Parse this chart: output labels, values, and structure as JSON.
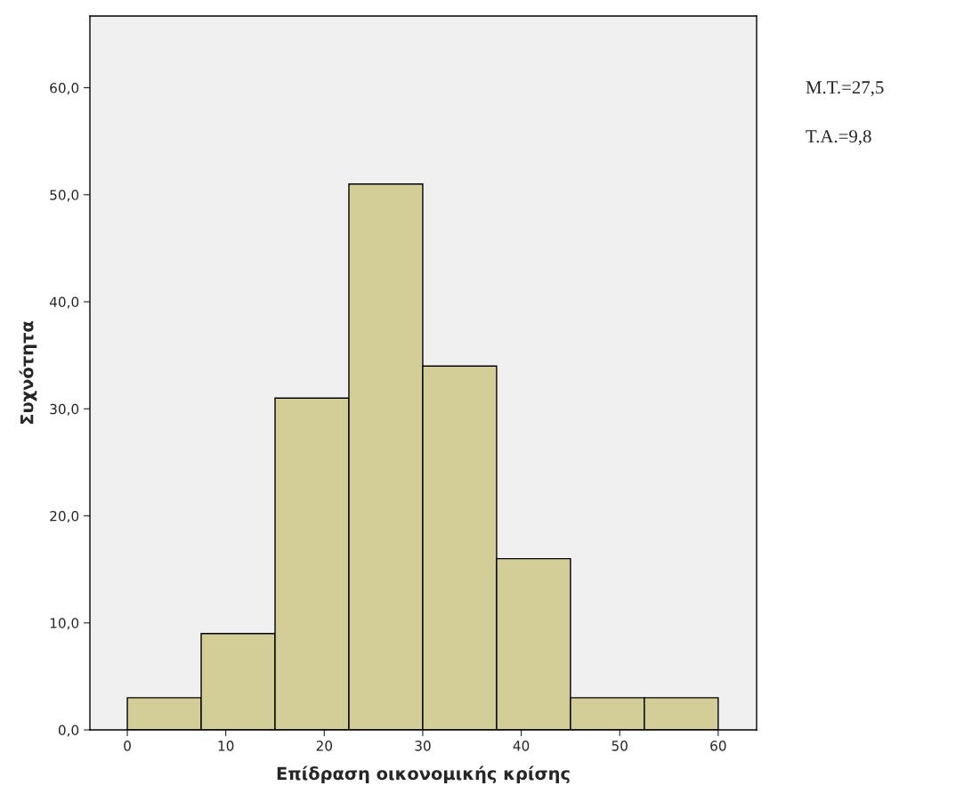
{
  "chart_data": {
    "type": "histogram",
    "xlabel": "Επίδραση οικονομικής κρίσης",
    "ylabel": "Συχνότητα",
    "bins": [
      0,
      7.5,
      15,
      22.5,
      30,
      37.5,
      45,
      52.5,
      60
    ],
    "values": [
      3,
      9,
      31,
      51,
      34,
      16,
      3,
      3
    ],
    "color": "#d3ce97",
    "xlim": [
      -3.8,
      63.9
    ],
    "ylim": [
      0,
      66.7
    ],
    "xticks": [
      0,
      10,
      20,
      30,
      40,
      50,
      60
    ],
    "yticks": [
      {
        "value": 0,
        "label": "0,0"
      },
      {
        "value": 10,
        "label": "10,0"
      },
      {
        "value": 20,
        "label": "20,0"
      },
      {
        "value": 30,
        "label": "30,0"
      },
      {
        "value": 40,
        "label": "40,0"
      },
      {
        "value": 50,
        "label": "50,0"
      },
      {
        "value": 60,
        "label": "60,0"
      }
    ],
    "grid": false,
    "legend": false,
    "annotations": [
      "M.T.=27,5",
      "T.A.=9,8"
    ]
  }
}
